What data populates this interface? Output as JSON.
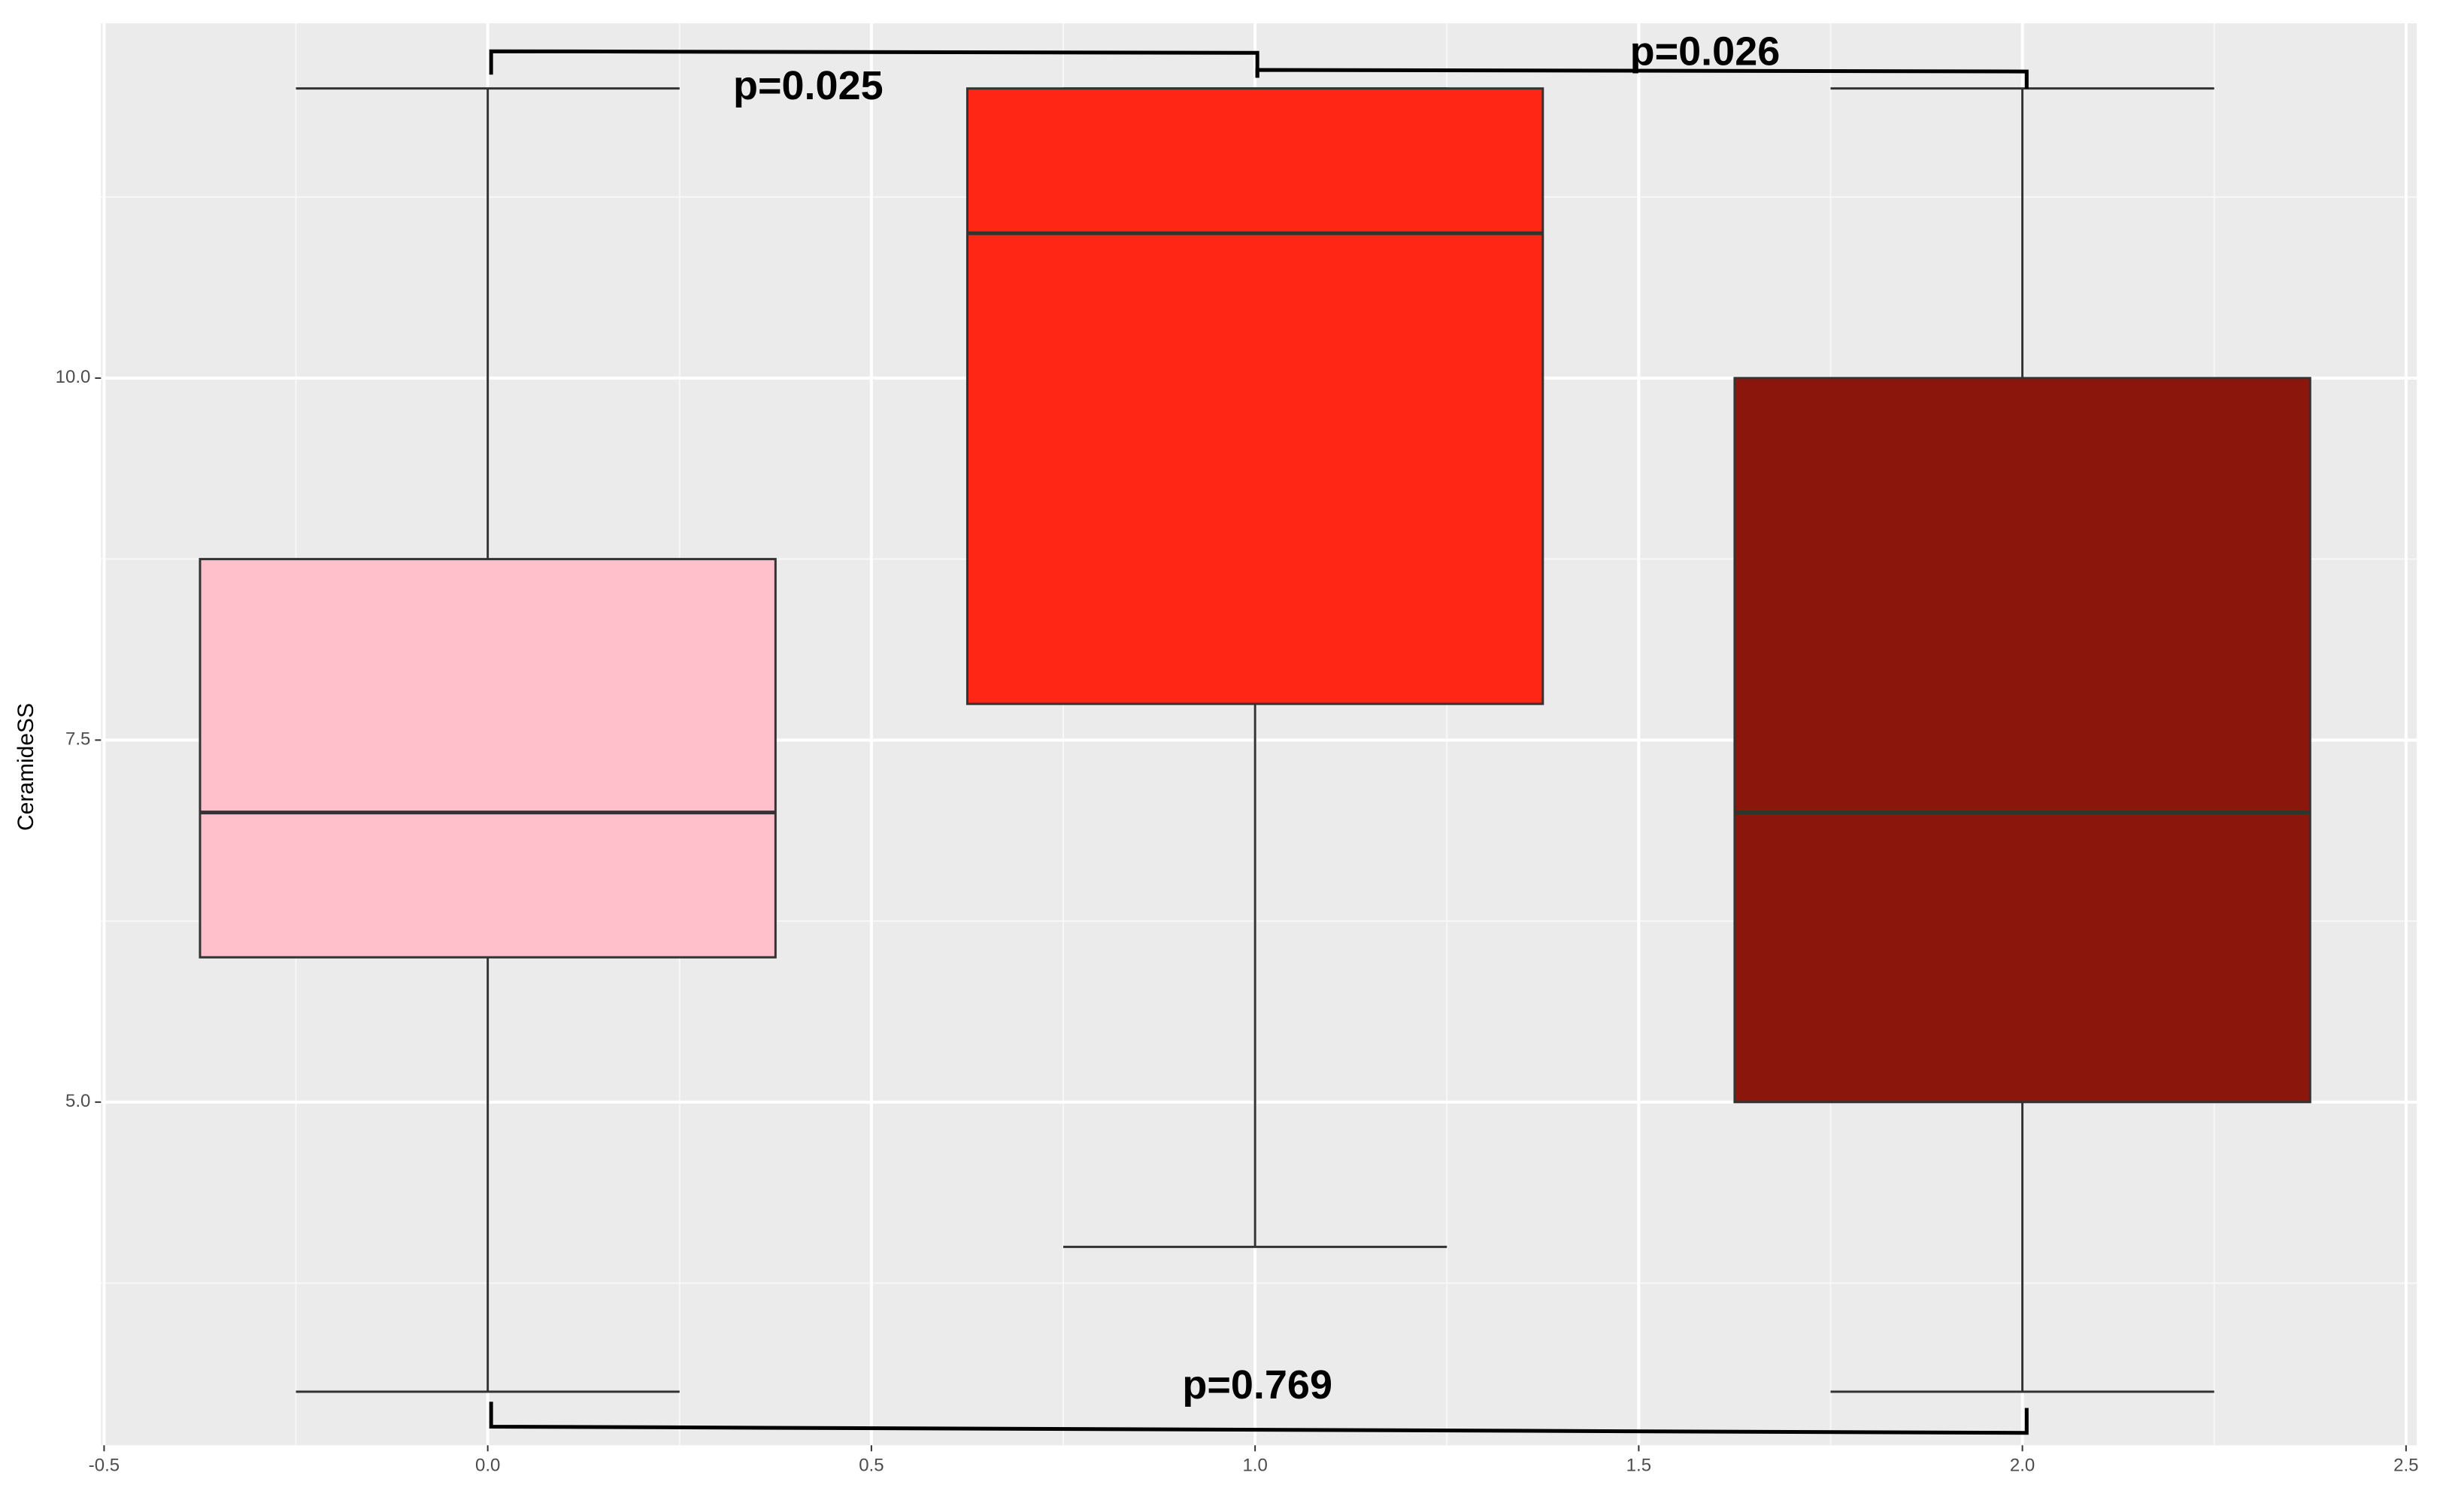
{
  "chart_data": {
    "type": "box",
    "y_label": "CeramideSS",
    "x": [
      0,
      1,
      2
    ],
    "whisker_low": [
      3.0,
      4.0,
      3.0
    ],
    "q1": [
      6.0,
      7.75,
      5.0
    ],
    "median": [
      7.0,
      11.0,
      7.0
    ],
    "q3": [
      8.75,
      12.0,
      10.0
    ],
    "whisker_high": [
      12.0,
      12.0,
      12.0
    ],
    "colors": [
      "#FFBFCB",
      "#FF2616",
      "#8B170C"
    ],
    "xlim": [
      -0.504,
      2.514
    ],
    "ylim": [
      2.63,
      12.45
    ],
    "xticks": [
      -0.5,
      {
        "value": 0,
        "label": "0.0"
      },
      0.5,
      {
        "value": 1,
        "label": "1.0"
      },
      1.5,
      {
        "value": 2,
        "label": "2.0"
      },
      2.5
    ],
    "yticks": [
      {
        "value": 5,
        "label": "5.0"
      },
      7.5,
      {
        "value": 10,
        "label": "10.0"
      }
    ],
    "grid": true,
    "annotations": [
      {
        "text": "p=0.025"
      },
      {
        "text": "p=0.026"
      },
      {
        "text": "p=0.769"
      }
    ]
  }
}
